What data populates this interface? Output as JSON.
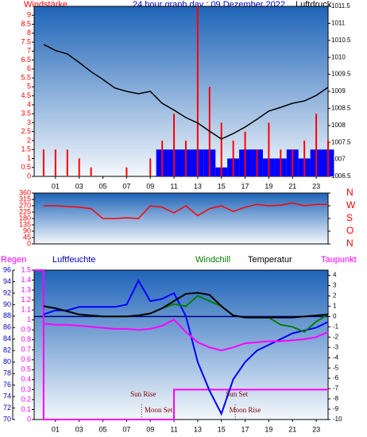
{
  "chart_data": [
    {
      "type": "combo",
      "title": "24 hour graph day : 09 Dezember 2022",
      "y_label": "Windstärke",
      "y2_label": "Luftdruck",
      "x": [
        0,
        1,
        2,
        3,
        4,
        5,
        6,
        7,
        8,
        9,
        10,
        11,
        12,
        13,
        14,
        15,
        16,
        17,
        18,
        19,
        20,
        21,
        22,
        23,
        24
      ],
      "xlim": [
        -0.8,
        24
      ],
      "xticks": [
        {
          "value": 1,
          "label": "01"
        },
        {
          "value": 3,
          "label": "03"
        },
        {
          "value": 5,
          "label": "05"
        },
        {
          "value": 7,
          "label": "07"
        },
        {
          "value": 9,
          "label": "09"
        },
        {
          "value": 11,
          "label": "11"
        },
        {
          "value": 13,
          "label": "13"
        },
        {
          "value": 15,
          "label": "15"
        },
        {
          "value": 17,
          "label": "17"
        },
        {
          "value": 19,
          "label": "19"
        },
        {
          "value": 21,
          "label": "21"
        },
        {
          "value": 23,
          "label": "23"
        }
      ],
      "ylim": [
        0,
        9.5
      ],
      "yticks": [
        0,
        0.5,
        1,
        1.5,
        2,
        2.5,
        3,
        3.5,
        4,
        4.5,
        5,
        5.5,
        6,
        6.5,
        7,
        7.5,
        8,
        8.5,
        9
      ],
      "y2lim": [
        1006.5,
        1011.5
      ],
      "y2ticks": [
        1006.5,
        1007,
        1007.5,
        1008,
        1008.5,
        1009,
        1009.5,
        1010,
        1010.5,
        1011,
        1011.5
      ],
      "series": [
        {
          "style": "bar",
          "color": "#0000ff",
          "values": [
            0,
            0,
            0,
            0,
            0,
            0,
            0,
            0,
            0,
            0,
            1.5,
            1.5,
            1.5,
            1.5,
            1.5,
            0.5,
            1,
            1.5,
            1.5,
            1,
            1,
            1.5,
            1,
            1.5,
            1.5
          ]
        },
        {
          "style": "spike",
          "color": "#ff0000",
          "values": [
            1.5,
            1.5,
            1.5,
            1,
            0.5,
            0,
            0,
            0.5,
            0,
            1,
            2,
            3.5,
            2,
            9.5,
            5,
            3,
            2,
            2.5,
            1.5,
            3,
            1.5,
            1.5,
            2,
            3.5,
            2
          ]
        },
        {
          "style": "line",
          "color": "#000000",
          "axis": "y2",
          "values": [
            1010.38,
            1010.2,
            1010.1,
            1009.85,
            1009.58,
            1009.35,
            1009.1,
            1009.0,
            1008.93,
            1009.0,
            1008.65,
            1008.45,
            1008.23,
            1008.07,
            1007.83,
            1007.6,
            1007.76,
            1007.95,
            1008.18,
            1008.42,
            1008.53,
            1008.65,
            1008.72,
            1008.88,
            1009.12
          ]
        }
      ]
    },
    {
      "type": "combo",
      "x": [
        0,
        1,
        2,
        3,
        4,
        5,
        6,
        7,
        8,
        9,
        10,
        11,
        12,
        13,
        14,
        15,
        16,
        17,
        18,
        19,
        20,
        21,
        22,
        23,
        24
      ],
      "xlim": [
        -0.8,
        24
      ],
      "ylim": [
        0,
        360
      ],
      "yticks": [
        0,
        45,
        90,
        135,
        180,
        225,
        270,
        315,
        360
      ],
      "y2lim": [
        0,
        360
      ],
      "y2ticks": [
        {
          "value": 0,
          "label": "N"
        },
        {
          "value": 90,
          "label": "O"
        },
        {
          "value": 180,
          "label": "S"
        },
        {
          "value": 270,
          "label": "W"
        },
        {
          "value": 360,
          "label": "N"
        }
      ],
      "series": [
        {
          "style": "line",
          "color": "#ff0000",
          "values": [
            270,
            270,
            265,
            260,
            250,
            180,
            180,
            185,
            180,
            270,
            260,
            220,
            270,
            200,
            250,
            270,
            230,
            260,
            280,
            270,
            275,
            290,
            270,
            280,
            280
          ]
        }
      ]
    },
    {
      "type": "combo",
      "x": [
        0,
        1,
        2,
        3,
        4,
        5,
        6,
        7,
        8,
        9,
        10,
        11,
        12,
        13,
        14,
        15,
        16,
        17,
        18,
        19,
        20,
        21,
        22,
        23,
        24
      ],
      "xlim": [
        -0.8,
        24
      ],
      "xticks": [
        {
          "value": 1,
          "label": "01"
        },
        {
          "value": 3,
          "label": "03"
        },
        {
          "value": 5,
          "label": "05"
        },
        {
          "value": 7,
          "label": "07"
        },
        {
          "value": 9,
          "label": "09"
        },
        {
          "value": 11,
          "label": "11"
        },
        {
          "value": 13,
          "label": "13"
        },
        {
          "value": 15,
          "label": "15"
        },
        {
          "value": 17,
          "label": "17"
        },
        {
          "value": 19,
          "label": "19"
        },
        {
          "value": 21,
          "label": "21"
        },
        {
          "value": 23,
          "label": "23"
        }
      ],
      "ylim": [
        0,
        1.5
      ],
      "yticks": [
        0,
        0.1,
        0.2,
        0.3,
        0.4,
        0.5,
        0.6,
        0.7,
        0.8,
        0.9,
        1,
        1.1,
        1.2,
        1.3,
        1.4,
        1.5
      ],
      "y3lim": [
        70,
        96
      ],
      "y3ticks": [
        70,
        72,
        74,
        76,
        78,
        80,
        82,
        84,
        86,
        88,
        90,
        92,
        94,
        96
      ],
      "y2lim": [
        -10,
        4.5
      ],
      "y2ticks": [
        -10,
        -9,
        -8,
        -7,
        -6,
        -5,
        -4,
        -3,
        -2,
        -1,
        0,
        1,
        2,
        3,
        4
      ],
      "reference_line": 0,
      "reference_color": "#000080",
      "series": [
        {
          "name": "Regen",
          "style": "line",
          "color": "#ff00ff",
          "width": 2,
          "x": [
            -0.8,
            0,
            0,
            11,
            11,
            24
          ],
          "values": [
            1.5,
            1.5,
            0,
            0,
            0.3,
            0.3
          ]
        },
        {
          "name": "Luftfeuchte",
          "style": "line",
          "color": "#0000ff",
          "width": 2,
          "axis": "y3",
          "values": [
            88.3,
            89,
            89,
            89.6,
            89.6,
            89.6,
            89.6,
            90,
            94.2,
            90.6,
            91,
            92,
            88,
            80,
            75,
            71,
            77,
            80,
            82,
            83,
            84,
            85,
            85.5,
            86,
            87
          ]
        },
        {
          "name": "Windchill",
          "style": "line",
          "color": "#008000",
          "width": 2,
          "axis": "y2",
          "values": [
            1.0,
            0.8,
            0.5,
            0.2,
            0.1,
            0.0,
            0.0,
            0.0,
            0.1,
            0.3,
            0.8,
            1.2,
            1.0,
            2.0,
            1.5,
            1.0,
            0.1,
            -0.1,
            -0.1,
            -0.1,
            -0.8,
            -1.0,
            -1.5,
            -0.5,
            0.2
          ]
        },
        {
          "name": "Temperatur",
          "style": "line",
          "color": "#000000",
          "width": 2,
          "axis": "y2",
          "values": [
            1.0,
            0.8,
            0.5,
            0.2,
            0.1,
            0.0,
            0.0,
            0.0,
            0.1,
            0.3,
            0.8,
            1.5,
            2.2,
            2.3,
            2.1,
            1.0,
            0.1,
            -0.1,
            -0.1,
            -0.1,
            -0.1,
            -0.1,
            0.0,
            0.1,
            0.2
          ]
        },
        {
          "name": "Taupunkt",
          "style": "line",
          "color": "#ff00ff",
          "width": 2,
          "axis": "y2",
          "values": [
            -0.7,
            -0.8,
            -0.8,
            -0.9,
            -1.0,
            -1.1,
            -1.2,
            -1.2,
            -1.3,
            -1.2,
            -0.9,
            -0.3,
            -1.5,
            -2.5,
            -3.0,
            -3.3,
            -3.0,
            -2.6,
            -2.5,
            -2.4,
            -2.4,
            -2.3,
            -2.2,
            -2.0,
            -1.5
          ]
        }
      ],
      "annotations": [
        {
          "text": "Sun Rise",
          "x": 8.4,
          "y": -7.6,
          "dotted": true
        },
        {
          "text": "Moon Set",
          "x": 9.7,
          "y": -9.15
        },
        {
          "text": "Sun Set",
          "x": 16.3,
          "y": -7.6,
          "dotted": true
        },
        {
          "text": "Moon Rise",
          "x": 17.0,
          "y": -9.15
        }
      ]
    }
  ]
}
